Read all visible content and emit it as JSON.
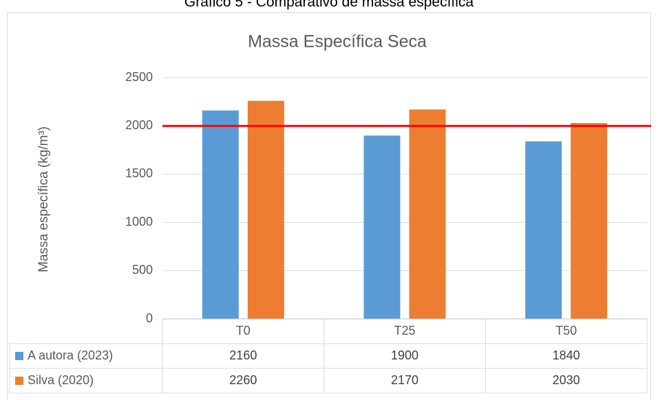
{
  "caption": "Gráfico 5 - Comparativo de massa específica",
  "chart_data": {
    "type": "bar",
    "title": "Massa Específica Seca",
    "y_label": "Massa específica (kg/m³)",
    "categories": [
      "T0",
      "T25",
      "T50"
    ],
    "series": [
      {
        "name": "A autora (2023)",
        "color": "#5b9bd5",
        "values": [
          2160,
          1900,
          1840
        ]
      },
      {
        "name": "Silva (2020)",
        "color": "#ed7d31",
        "values": [
          2260,
          2170,
          2030
        ]
      }
    ],
    "reference_line": {
      "value": 2000,
      "color": "#ff0000"
    },
    "ylim": [
      0,
      2500
    ],
    "yticks": [
      0,
      500,
      1000,
      1500,
      2000,
      2500
    ],
    "grid": true,
    "data_table": true
  }
}
